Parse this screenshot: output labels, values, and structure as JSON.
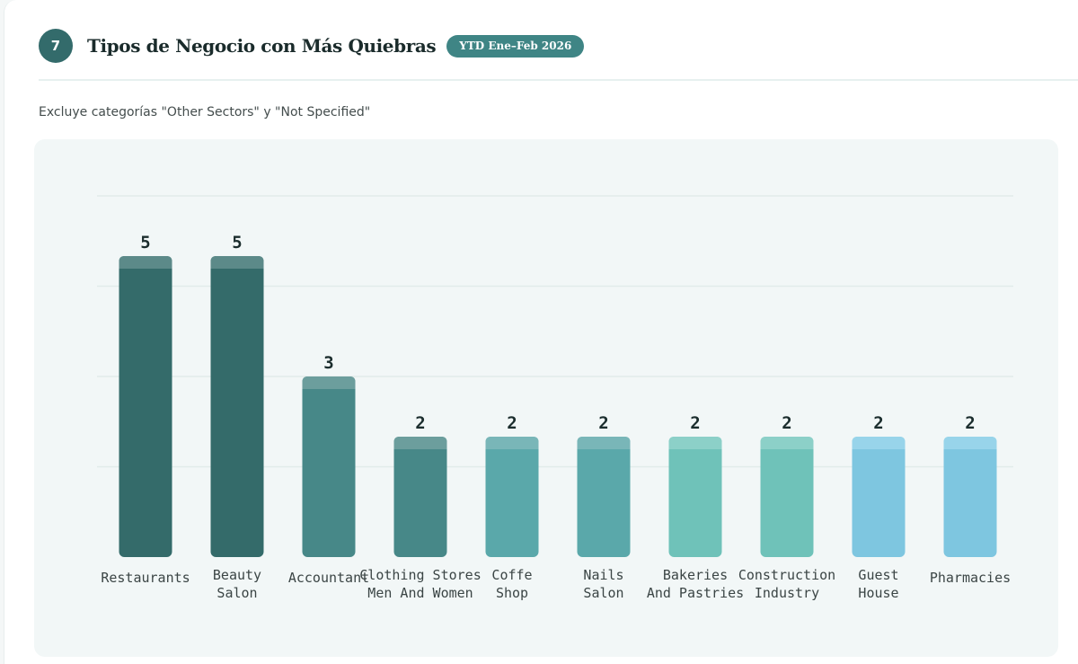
{
  "section": {
    "number": "7",
    "title": "Tipos de Negocio con Más Quiebras",
    "period_badge": "YTD Ene–Feb 2026",
    "subtitle": "Excluye categorías \"Other Sectors\" y \"Not Specified\""
  },
  "chart_data": {
    "type": "bar",
    "title": "Tipos de Negocio con Más Quiebras",
    "xlabel": "",
    "ylabel": "",
    "ylim": [
      0,
      6
    ],
    "grid": true,
    "categories": [
      [
        "Restaurants"
      ],
      [
        "Beauty",
        "Salon"
      ],
      [
        "Accountant"
      ],
      [
        "Clothing Stores",
        "Men And Women"
      ],
      [
        "Coffe",
        "Shop"
      ],
      [
        "Nails",
        "Salon"
      ],
      [
        "Bakeries",
        "And Pastries"
      ],
      [
        "Construction",
        "Industry"
      ],
      [
        "Guest",
        "House"
      ],
      [
        "Pharmacies"
      ]
    ],
    "values": [
      5,
      5,
      3,
      2,
      2,
      2,
      2,
      2,
      2,
      2
    ],
    "colors": [
      "#346b6a",
      "#346b6a",
      "#478888",
      "#478888",
      "#5aa8aa",
      "#5aa8aa",
      "#6fc2b9",
      "#6fc2b9",
      "#7ec6e0",
      "#7ec6e0"
    ],
    "cap_colors": [
      "#5c8a89",
      "#5c8a89",
      "#6c9e9d",
      "#6c9e9d",
      "#79b6b8",
      "#79b6b8",
      "#8cd0c8",
      "#8cd0c8",
      "#98d4ea",
      "#98d4ea"
    ]
  }
}
